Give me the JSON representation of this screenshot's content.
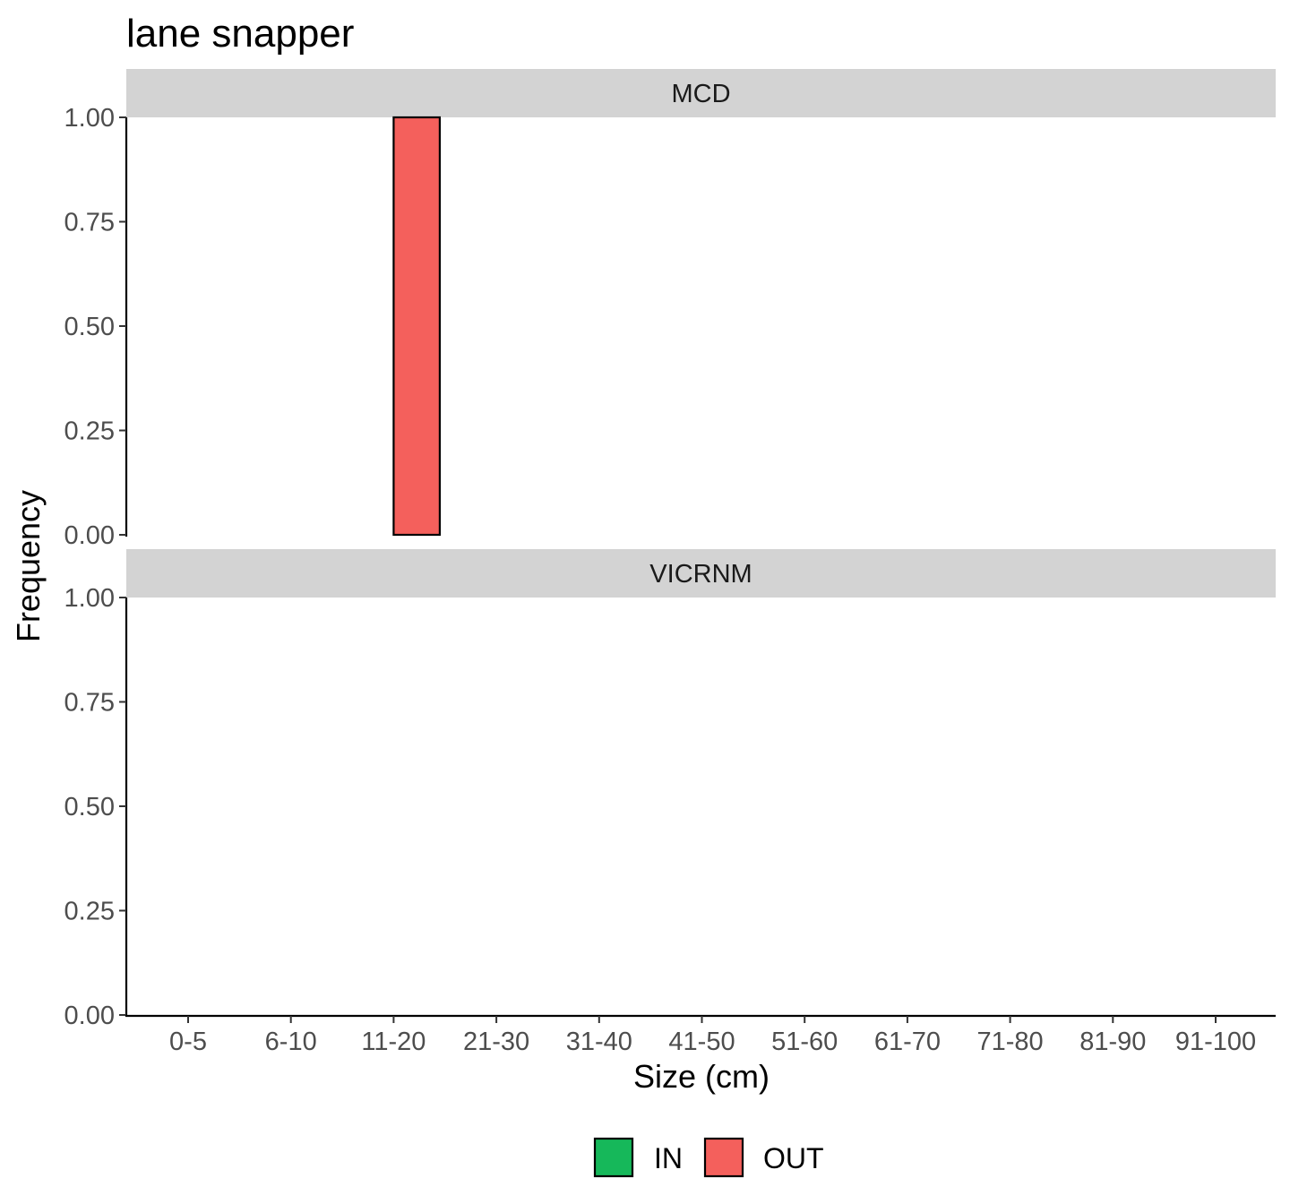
{
  "chart_data": {
    "type": "bar",
    "title": "lane snapper",
    "xlabel": "Size (cm)",
    "ylabel": "Frequency",
    "categories": [
      "0-5",
      "6-10",
      "11-20",
      "21-30",
      "31-40",
      "41-50",
      "51-60",
      "61-70",
      "71-80",
      "81-90",
      "91-100"
    ],
    "ylim": [
      0,
      1
    ],
    "yticks": [
      "0.00",
      "0.25",
      "0.50",
      "0.75",
      "1.00"
    ],
    "grid": false,
    "legend_position": "bottom",
    "legend": [
      {
        "name": "IN",
        "color": "#16b85a"
      },
      {
        "name": "OUT",
        "color": "#f4605c"
      }
    ],
    "facets": [
      {
        "label": "MCD",
        "series": [
          {
            "name": "IN",
            "values": [
              0,
              0,
              0,
              0,
              0,
              0,
              0,
              0,
              0,
              0,
              0
            ]
          },
          {
            "name": "OUT",
            "values": [
              0,
              0,
              1,
              0,
              0,
              0,
              0,
              0,
              0,
              0,
              0
            ]
          }
        ]
      },
      {
        "label": "VICRNM",
        "series": [
          {
            "name": "IN",
            "values": [
              0,
              0,
              0,
              0,
              0,
              0,
              0,
              0,
              0,
              0,
              0
            ]
          },
          {
            "name": "OUT",
            "values": [
              0,
              0,
              0,
              0,
              0,
              0,
              0,
              0,
              0,
              0,
              0
            ]
          }
        ]
      }
    ]
  }
}
